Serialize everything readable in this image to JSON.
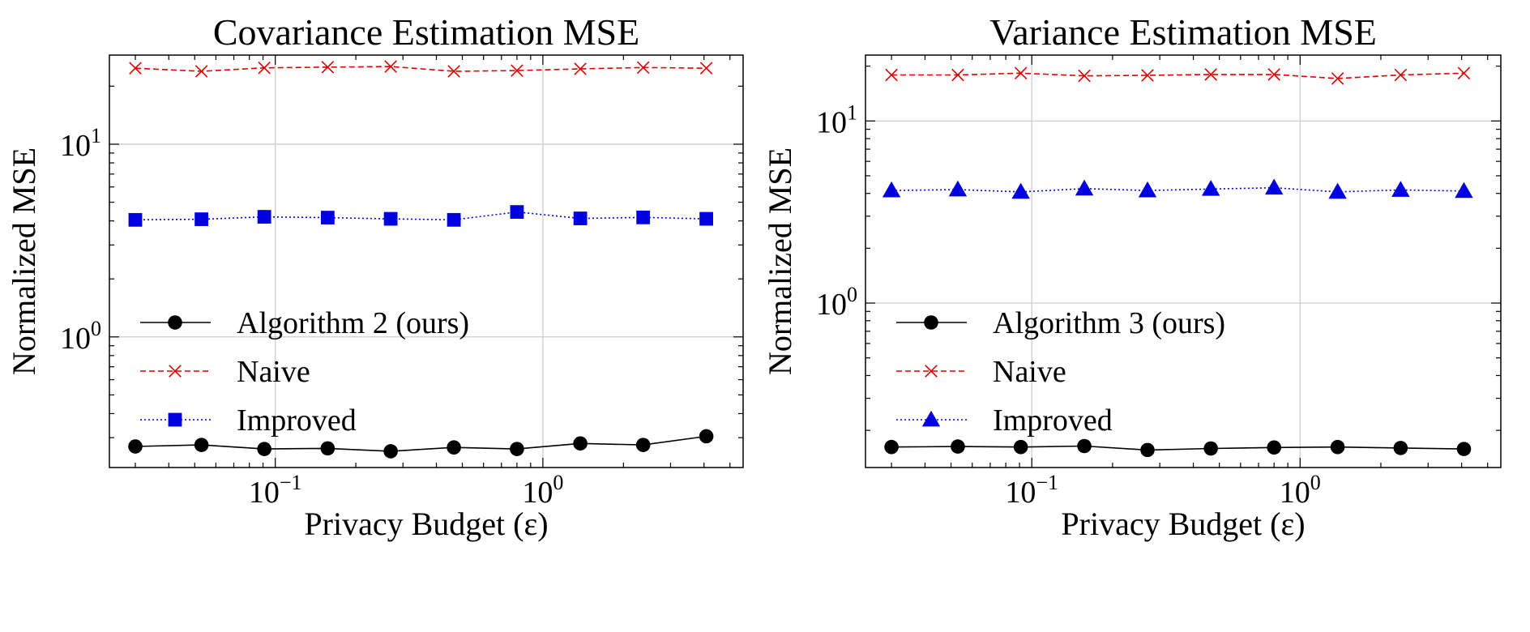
{
  "chart_data": [
    {
      "type": "line",
      "title": "Covariance Estimation MSE",
      "xlabel": "Privacy Budget (ε)",
      "ylabel": "Normalized MSE",
      "xscale": "log",
      "yscale": "log",
      "xlim": [
        0.024,
        5.6
      ],
      "ylim": [
        0.21,
        29
      ],
      "xticks": [
        {
          "value": 0.1,
          "base": "10",
          "exp": "−1"
        },
        {
          "value": 1,
          "base": "10",
          "exp": "0"
        }
      ],
      "yticks": [
        {
          "value": 1,
          "base": "10",
          "exp": "0"
        },
        {
          "value": 10,
          "base": "10",
          "exp": "1"
        }
      ],
      "grid": true,
      "legend_position": "lower-left",
      "x": [
        0.03,
        0.053,
        0.091,
        0.157,
        0.27,
        0.465,
        0.8,
        1.38,
        2.37,
        4.08
      ],
      "series": [
        {
          "name": "Algorithm 2 (ours)",
          "color": "#000000",
          "marker": "circle",
          "dash": "solid",
          "values": [
            0.27,
            0.275,
            0.262,
            0.264,
            0.255,
            0.267,
            0.262,
            0.28,
            0.275,
            0.305
          ]
        },
        {
          "name": "Naive",
          "color": "#e00000",
          "marker": "x",
          "dash": "dashed",
          "values": [
            24.8,
            23.9,
            24.9,
            25.1,
            25.3,
            23.9,
            24.1,
            24.6,
            25.0,
            24.8
          ]
        },
        {
          "name": "Improved",
          "color": "#0000e0",
          "marker": "square",
          "dash": "dotted",
          "values": [
            4.05,
            4.08,
            4.2,
            4.16,
            4.1,
            4.05,
            4.45,
            4.12,
            4.17,
            4.1
          ]
        }
      ]
    },
    {
      "type": "line",
      "title": "Variance Estimation MSE",
      "xlabel": "Privacy Budget (ε)",
      "ylabel": "Normalized MSE",
      "xscale": "log",
      "yscale": "log",
      "xlim": [
        0.024,
        5.6
      ],
      "ylim": [
        0.125,
        23
      ],
      "xticks": [
        {
          "value": 0.1,
          "base": "10",
          "exp": "−1"
        },
        {
          "value": 1,
          "base": "10",
          "exp": "0"
        }
      ],
      "yticks": [
        {
          "value": 1,
          "base": "10",
          "exp": "0"
        },
        {
          "value": 10,
          "base": "10",
          "exp": "1"
        }
      ],
      "grid": true,
      "legend_position": "lower-left",
      "x": [
        0.03,
        0.053,
        0.091,
        0.157,
        0.27,
        0.465,
        0.8,
        1.38,
        2.37,
        4.08
      ],
      "series": [
        {
          "name": "Algorithm 3 (ours)",
          "color": "#000000",
          "marker": "circle",
          "dash": "solid",
          "values": [
            0.162,
            0.163,
            0.162,
            0.164,
            0.156,
            0.159,
            0.161,
            0.162,
            0.16,
            0.158
          ]
        },
        {
          "name": "Naive",
          "color": "#e00000",
          "marker": "x",
          "dash": "dashed",
          "values": [
            17.9,
            17.9,
            18.3,
            17.7,
            17.8,
            18.0,
            18.0,
            17.1,
            17.9,
            18.3
          ]
        },
        {
          "name": "Improved",
          "color": "#0000e0",
          "marker": "triangle",
          "dash": "dotted",
          "values": [
            4.15,
            4.2,
            4.08,
            4.25,
            4.15,
            4.23,
            4.3,
            4.08,
            4.18,
            4.12
          ]
        }
      ]
    }
  ]
}
